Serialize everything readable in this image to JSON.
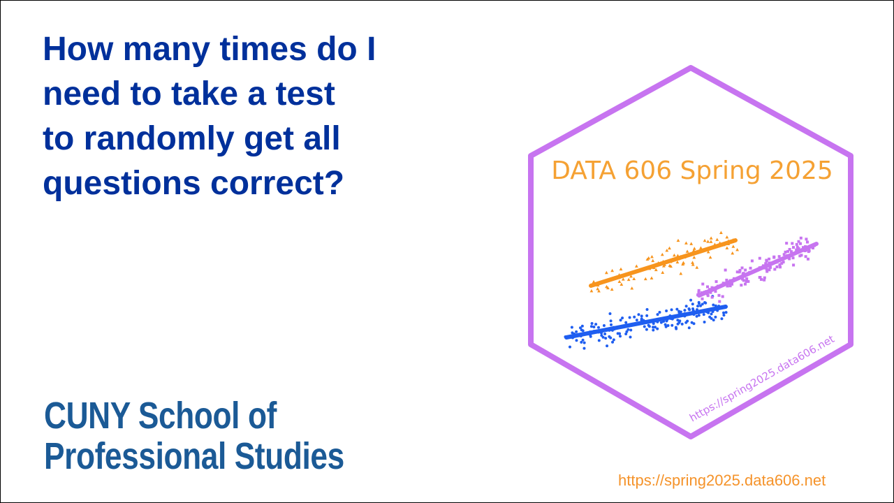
{
  "question": {
    "lines": [
      "How many times do I",
      "need to take a test",
      "to randomly get all",
      "questions correct?"
    ]
  },
  "logo": {
    "line1": "CUNY School of",
    "line2": "Professional Studies"
  },
  "hex_sticker": {
    "title": "DATA 606 Spring 2025",
    "url": "https://spring2025.data606.net",
    "colors": {
      "border": "#c774f0",
      "title": "#f5a133",
      "orange": "#f7941d",
      "blue": "#1f5ef0",
      "purple": "#c774f0"
    }
  },
  "footer": {
    "url": "https://spring2025.data606.net"
  },
  "colors": {
    "question": "#00309b",
    "logo": "#1b5a96",
    "footer": "#f5932a"
  }
}
